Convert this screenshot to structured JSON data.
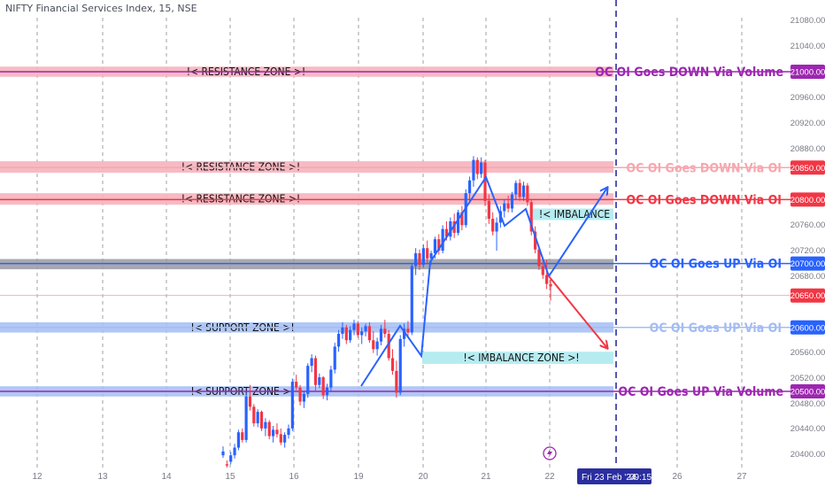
{
  "symbol_title": "NIFTY Financial Services Index, 15, NSE",
  "colors": {
    "bull": "#2962ff",
    "bear": "#f23645",
    "resistance_fill": "#f6b3bd",
    "support_fill": "#a9c1f5",
    "imbalance_fill": "#aeeaf0",
    "pivot_fill": "#9a9a9f",
    "arrow_up": "#2962ff",
    "arrow_down": "#f23645",
    "purple": "#9c27b0"
  },
  "chart_data": {
    "type": "candlestick",
    "title": "NIFTY Financial Services Index, 15, NSE",
    "x_ticks": [
      "12",
      "13",
      "14",
      "15",
      "16",
      "19",
      "20",
      "21",
      "22",
      "26",
      "27"
    ],
    "y_ticks": [
      "21080.00",
      "21040.00",
      "21000.00",
      "20960.00",
      "20920.00",
      "20880.00",
      "20850.00",
      "20800.00",
      "20760.00",
      "20720.00",
      "20700.00",
      "20680.00",
      "20650.00",
      "20600.00",
      "20560.00",
      "20520.00",
      "20500.00",
      "20480.00",
      "20440.00",
      "20400.00"
    ],
    "ylim": [
      20385,
      21105
    ],
    "crosshair_date_label": "Fri 23 Feb '24",
    "crosshair_time_label": "09:15",
    "zones": [
      {
        "label": "!< RESISTANCE ZONE >!",
        "kind": "resistance",
        "low": 20992,
        "high": 21008
      },
      {
        "label": "!< RESISTANCE ZONE >!",
        "kind": "resistance",
        "low": 20842,
        "high": 20860
      },
      {
        "label": "!< RESISTANCE ZONE >!",
        "kind": "resistance",
        "low": 20792,
        "high": 20810
      },
      {
        "label": "",
        "kind": "pivot",
        "low": 20691,
        "high": 20707
      },
      {
        "label": "!< SUPPORT ZONE >!",
        "kind": "support",
        "low": 20592,
        "high": 20608
      },
      {
        "label": "!< SUPPORT ZONE >!",
        "kind": "support",
        "low": 20492,
        "high": 20508
      },
      {
        "label": "!< IMBALANCE",
        "kind": "imbalance",
        "low": 20768,
        "high": 20786
      },
      {
        "label": "!< IMBALANCE ZONE >!",
        "kind": "imbalance",
        "low": 20543,
        "high": 20562
      }
    ],
    "levels": [
      {
        "text": "OC OI Goes DOWN Via Volume",
        "price": 21000,
        "tag": "21000.00",
        "style": "purple"
      },
      {
        "text": "OC OI Goes DOWN Via OI",
        "price": 20850,
        "tag": "20850.00",
        "style": "light_red"
      },
      {
        "text": "OC OI Goes DOWN Via OI",
        "price": 20800,
        "tag": "20800.00",
        "style": "red"
      },
      {
        "text": "OC OI Goes UP  Via OI",
        "price": 20700,
        "tag": "20700.00",
        "style": "blue"
      },
      {
        "text": "",
        "price": 20650,
        "tag": "20650.00",
        "style": "red_thin"
      },
      {
        "text": "OC OI Goes UP  Via OI",
        "price": 20600,
        "tag": "20600.00",
        "style": "light_blue"
      },
      {
        "text": "OC OI Goes UP  Via Volume",
        "price": 20500,
        "tag": "20500.00",
        "style": "purple"
      }
    ],
    "candles": [
      [
        20400,
        20414,
        20396,
        20406
      ],
      [
        20386,
        20392,
        20380,
        20384
      ],
      [
        20390,
        20405,
        20386,
        20400
      ],
      [
        20400,
        20418,
        20395,
        20412
      ],
      [
        20412,
        20440,
        20408,
        20436
      ],
      [
        20436,
        20442,
        20420,
        20424
      ],
      [
        20424,
        20498,
        20420,
        20492
      ],
      [
        20492,
        20510,
        20470,
        20476
      ],
      [
        20476,
        20480,
        20445,
        20450
      ],
      [
        20450,
        20472,
        20444,
        20468
      ],
      [
        20468,
        20470,
        20438,
        20442
      ],
      [
        20442,
        20458,
        20430,
        20452
      ],
      [
        20452,
        20455,
        20425,
        20430
      ],
      [
        20430,
        20446,
        20420,
        20440
      ],
      [
        20440,
        20450,
        20428,
        20433
      ],
      [
        20433,
        20442,
        20416,
        20420
      ],
      [
        20420,
        20436,
        20412,
        20432
      ],
      [
        20432,
        20448,
        20426,
        20442
      ],
      [
        20442,
        20520,
        20438,
        20515
      ],
      [
        20515,
        20526,
        20502,
        20506
      ],
      [
        20506,
        20510,
        20478,
        20484
      ],
      [
        20484,
        20500,
        20474,
        20496
      ],
      [
        20496,
        20544,
        20490,
        20540
      ],
      [
        20540,
        20558,
        20530,
        20552
      ],
      [
        20552,
        20556,
        20500,
        20510
      ],
      [
        20510,
        20528,
        20505,
        20522
      ],
      [
        20522,
        20524,
        20488,
        20494
      ],
      [
        20494,
        20512,
        20486,
        20506
      ],
      [
        20506,
        20540,
        20500,
        20534
      ],
      [
        20534,
        20576,
        20528,
        20570
      ],
      [
        20570,
        20596,
        20562,
        20590
      ],
      [
        20590,
        20608,
        20582,
        20600
      ],
      [
        20600,
        20604,
        20574,
        20580
      ],
      [
        20580,
        20602,
        20576,
        20596
      ],
      [
        20596,
        20612,
        20588,
        20606
      ],
      [
        20606,
        20610,
        20584,
        20588
      ],
      [
        20588,
        20600,
        20574,
        20594
      ],
      [
        20594,
        20606,
        20586,
        20602
      ],
      [
        20602,
        20608,
        20576,
        20580
      ],
      [
        20580,
        20594,
        20560,
        20566
      ],
      [
        20566,
        20584,
        20556,
        20578
      ],
      [
        20578,
        20604,
        20572,
        20598
      ],
      [
        20598,
        20612,
        20584,
        20590
      ],
      [
        20590,
        20596,
        20548,
        20552
      ],
      [
        20552,
        20566,
        20526,
        20532
      ],
      [
        20532,
        20548,
        20490,
        20498
      ],
      [
        20498,
        20588,
        20494,
        20582
      ],
      [
        20582,
        20606,
        20570,
        20598
      ],
      [
        20598,
        20610,
        20586,
        20592
      ],
      [
        20592,
        20700,
        20588,
        20696
      ],
      [
        20696,
        20724,
        20682,
        20716
      ],
      [
        20716,
        20722,
        20690,
        20698
      ],
      [
        20698,
        20730,
        20694,
        20724
      ],
      [
        20724,
        20736,
        20700,
        20708
      ],
      [
        20708,
        20720,
        20698,
        20716
      ],
      [
        20716,
        20742,
        20708,
        20738
      ],
      [
        20738,
        20746,
        20714,
        20720
      ],
      [
        20720,
        20760,
        20716,
        20754
      ],
      [
        20754,
        20766,
        20736,
        20742
      ],
      [
        20742,
        20772,
        20736,
        20766
      ],
      [
        20766,
        20778,
        20740,
        20748
      ],
      [
        20748,
        20784,
        20744,
        20780
      ],
      [
        20780,
        20790,
        20752,
        20760
      ],
      [
        20760,
        20816,
        20756,
        20810
      ],
      [
        20810,
        20836,
        20796,
        20830
      ],
      [
        20830,
        20868,
        20820,
        20862
      ],
      [
        20862,
        20866,
        20832,
        20840
      ],
      [
        20840,
        20866,
        20834,
        20858
      ],
      [
        20858,
        20862,
        20790,
        20798
      ],
      [
        20798,
        20808,
        20762,
        20770
      ],
      [
        20770,
        20780,
        20744,
        20750
      ],
      [
        20750,
        20772,
        20720,
        20764
      ],
      [
        20764,
        20790,
        20756,
        20782
      ],
      [
        20782,
        20800,
        20772,
        20794
      ],
      [
        20794,
        20806,
        20780,
        20786
      ],
      [
        20786,
        20812,
        20780,
        20808
      ],
      [
        20808,
        20830,
        20800,
        20826
      ],
      [
        20826,
        20832,
        20798,
        20804
      ],
      [
        20804,
        20828,
        20798,
        20822
      ],
      [
        20822,
        20826,
        20790,
        20796
      ],
      [
        20796,
        20800,
        20744,
        20750
      ],
      [
        20750,
        20758,
        20716,
        20722
      ],
      [
        20722,
        20728,
        20690,
        20696
      ],
      [
        20696,
        20702,
        20676,
        20682
      ],
      [
        20682,
        20706,
        20660,
        20668
      ],
      [
        20668,
        20676,
        20642,
        20664
      ]
    ],
    "arrows": [
      {
        "direction": "up",
        "points": [
          [
            20500,
            20500
          ],
          [
            20650,
            20610
          ],
          [
            20612,
            20530
          ],
          [
            20780,
            20690
          ],
          [
            20850,
            20860
          ],
          [
            20800,
            20820
          ],
          [
            20770,
            20700
          ],
          [
            20720,
            20680
          ]
        ]
      },
      {
        "direction": "up",
        "points": [
          [
            20680,
            20680
          ],
          [
            20820,
            20820
          ]
        ]
      },
      {
        "direction": "down",
        "points": [
          [
            20680,
            20680
          ],
          [
            20548,
            20548
          ]
        ]
      }
    ]
  }
}
